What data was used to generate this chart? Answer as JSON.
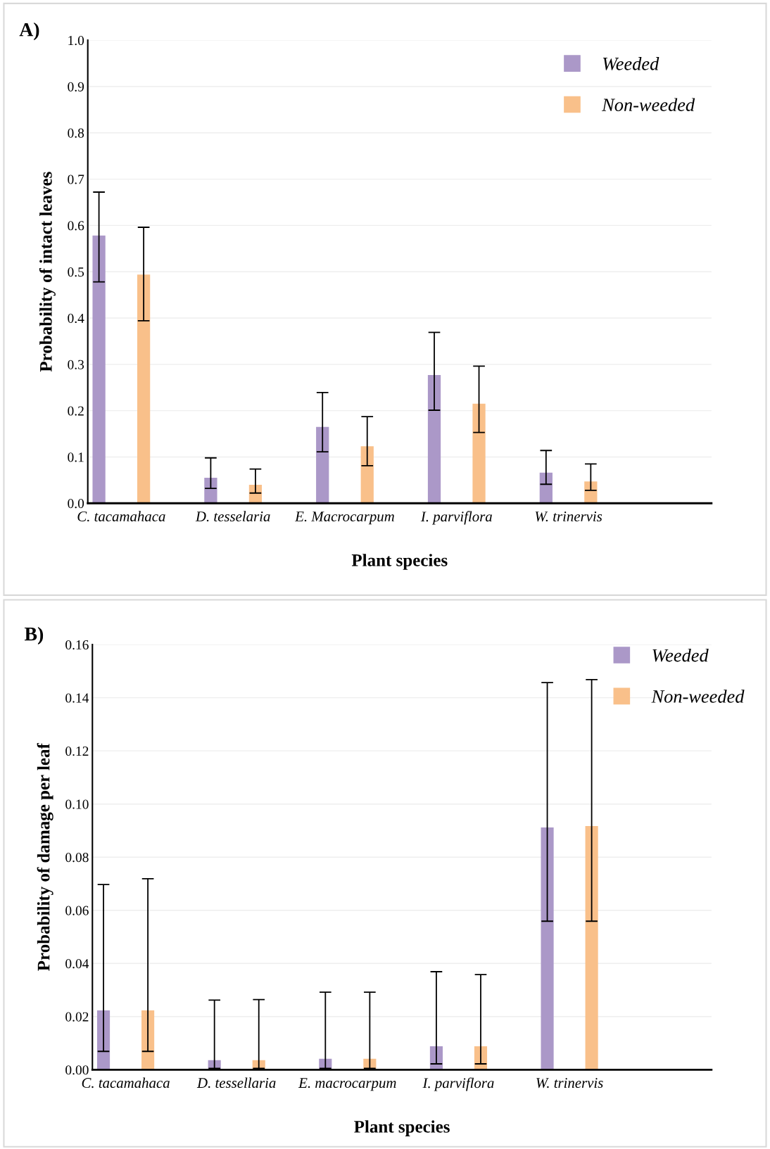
{
  "chart_data": [
    {
      "type": "bar",
      "title": "A)",
      "xlabel": "Plant species",
      "ylabel": "Probability of intact leaves",
      "categories": [
        "C. tacamahaca",
        "D. tesselaria",
        "E. Macrocarpum",
        "I. parviflora",
        "W. trinervis"
      ],
      "series": [
        {
          "name": "Weeded",
          "color": "#ab98c8",
          "values": [
            0.578,
            0.055,
            0.165,
            0.277,
            0.066
          ],
          "errors": [
            [
              0.478,
              0.672
            ],
            [
              0.032,
              0.098
            ],
            [
              0.111,
              0.239
            ],
            [
              0.201,
              0.369
            ],
            [
              0.041,
              0.114
            ]
          ]
        },
        {
          "name": "Non-weeded",
          "color": "#f9c08a",
          "values": [
            0.494,
            0.04,
            0.123,
            0.215,
            0.047
          ],
          "errors": [
            [
              0.394,
              0.596
            ],
            [
              0.022,
              0.074
            ],
            [
              0.081,
              0.187
            ],
            [
              0.153,
              0.296
            ],
            [
              0.028,
              0.085
            ]
          ]
        }
      ],
      "ylim": [
        0,
        1.0
      ],
      "yticks": [
        {
          "value": 0,
          "label": "0.0"
        },
        {
          "value": 0.1,
          "label": "0.1"
        },
        {
          "value": 0.2,
          "label": "0.2"
        },
        {
          "value": 0.3,
          "label": "0.3"
        },
        {
          "value": 0.4,
          "label": "0.4"
        },
        {
          "value": 0.5,
          "label": "0.5"
        },
        {
          "value": 0.6,
          "label": "0.6"
        },
        {
          "value": 0.7,
          "label": "0.7"
        },
        {
          "value": 0.8,
          "label": "0.8"
        },
        {
          "value": 0.9,
          "label": "0.9"
        },
        {
          "value": 1.0,
          "label": "1.0"
        }
      ],
      "grid": "y",
      "legend": "top right"
    },
    {
      "type": "bar",
      "title": "B)",
      "xlabel": "Plant species",
      "ylabel": "Probability of damage per leaf",
      "categories": [
        "C. tacamahaca",
        "D. tessellaria",
        "E. macrocarpum",
        "I. parviflora",
        "W. trinervis"
      ],
      "series": [
        {
          "name": "Weeded",
          "color": "#ab98c8",
          "values": [
            0.0223,
            0.0036,
            0.0041,
            0.0088,
            0.0912
          ],
          "errors": [
            [
              0.0069,
              0.0697
            ],
            [
              0.0005,
              0.0262
            ],
            [
              0.0005,
              0.0292
            ],
            [
              0.0022,
              0.0369
            ],
            [
              0.0559,
              0.1457
            ]
          ]
        },
        {
          "name": "Non-weeded",
          "color": "#f9c08a",
          "values": [
            0.0223,
            0.0036,
            0.0041,
            0.0088,
            0.0917
          ],
          "errors": [
            [
              0.0069,
              0.0719
            ],
            [
              0.0005,
              0.0264
            ],
            [
              0.0005,
              0.0292
            ],
            [
              0.0022,
              0.0358
            ],
            [
              0.0559,
              0.1468
            ]
          ]
        }
      ],
      "ylim": [
        0,
        0.16
      ],
      "yticks": [
        {
          "value": 0,
          "label": "0.00"
        },
        {
          "value": 0.02,
          "label": "0.02"
        },
        {
          "value": 0.04,
          "label": "0.04"
        },
        {
          "value": 0.06,
          "label": "0.06"
        },
        {
          "value": 0.08,
          "label": "0.08"
        },
        {
          "value": 0.1,
          "label": "0.10"
        },
        {
          "value": 0.12,
          "label": "0.12"
        },
        {
          "value": 0.14,
          "label": "0.14"
        },
        {
          "value": 0.16,
          "label": "0.16"
        }
      ],
      "grid": "y",
      "legend": "top right"
    }
  ]
}
